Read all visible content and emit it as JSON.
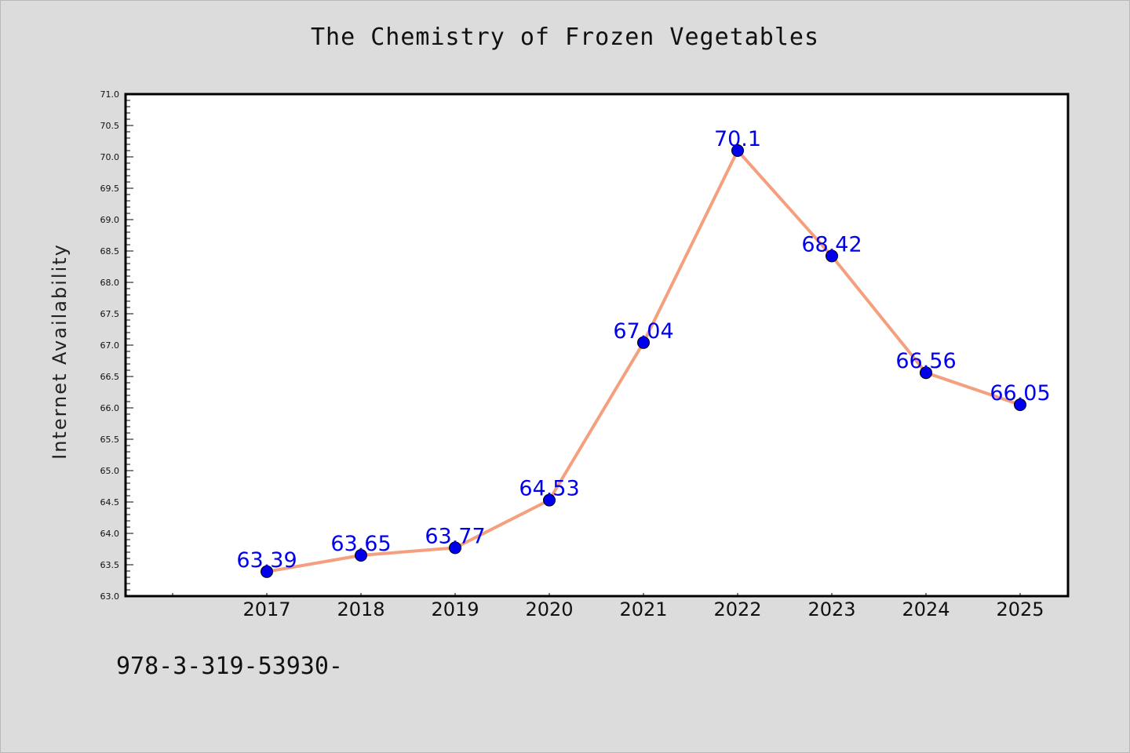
{
  "page": {
    "background": "#dcdcdc",
    "footnote": "978-3-319-53930-"
  },
  "chart_data": {
    "type": "line",
    "title": "The Chemistry of Frozen Vegetables",
    "xlabel": "",
    "ylabel": "Internet Availability",
    "categories": [
      "2017",
      "2018",
      "2019",
      "2020",
      "2021",
      "2022",
      "2023",
      "2024",
      "2025"
    ],
    "series": [
      {
        "values": [
          63.39,
          63.65,
          63.77,
          64.53,
          67.04,
          70.1,
          68.42,
          66.56,
          66.05
        ],
        "data_labels": [
          "63.39",
          "63.65",
          "63.77",
          "64.53",
          "67.04",
          "70.1",
          "68.42",
          "66.56",
          "66.05"
        ],
        "line_color": "#f4a07f",
        "marker_color": "#0000ee",
        "label_color": "#0000ee"
      }
    ],
    "ylim": [
      63.0,
      71.0
    ],
    "y_ticks": [
      "63.0",
      "63.5",
      "64.0",
      "64.5",
      "65.0",
      "65.5",
      "66.0",
      "66.5",
      "67.0",
      "67.5",
      "68.0",
      "68.5",
      "69.0",
      "69.5",
      "70.0",
      "70.5",
      "71.0"
    ],
    "grid": false,
    "legend": "none"
  }
}
